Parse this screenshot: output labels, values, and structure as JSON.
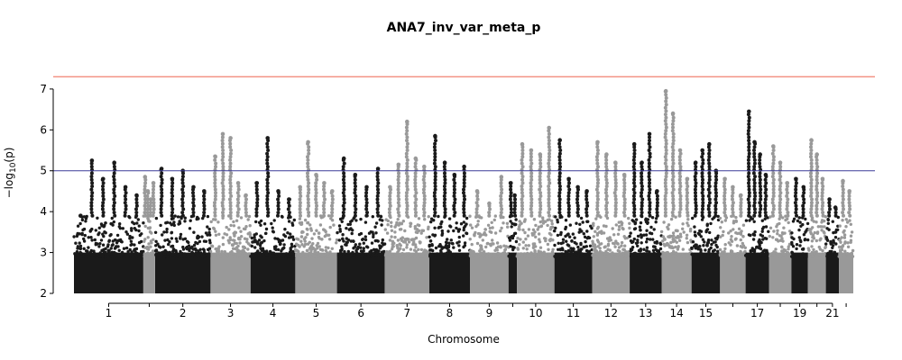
{
  "chart_data": {
    "type": "scatter",
    "title": "ANA7_inv_var_meta_p",
    "xlabel": "Chromosome",
    "ylabel_main": "−log",
    "ylabel_sub": "10",
    "ylabel_tail": "(p)",
    "ylim": [
      2,
      7.35
    ],
    "yticks": [
      "2",
      "3",
      "4",
      "5",
      "6",
      "7"
    ],
    "suggestive_line": 5,
    "genomewide_line": 7.3,
    "line_colors": {
      "suggestive": "#3b3b98",
      "genomewide": "#f08070"
    },
    "series_colors": [
      "#1a1a1a",
      "#999999"
    ],
    "grid": false,
    "chromosomes": [
      {
        "label": "1",
        "start": 0,
        "end": 248,
        "peaks": [
          3.9,
          5.25,
          4.8,
          5.2,
          4.6,
          4.4
        ]
      },
      {
        "label": "",
        "start": 248,
        "end": 290,
        "peaks": [
          4.85,
          4.5,
          4.3,
          4.7
        ]
      },
      {
        "label": "2",
        "start": 290,
        "end": 488,
        "peaks": [
          5.05,
          4.8,
          5.0,
          4.6,
          4.5
        ]
      },
      {
        "label": "3",
        "start": 488,
        "end": 631,
        "peaks": [
          5.35,
          5.9,
          5.8,
          4.7,
          4.4
        ]
      },
      {
        "label": "4",
        "start": 631,
        "end": 791,
        "peaks": [
          4.7,
          5.8,
          4.5,
          4.3
        ]
      },
      {
        "label": "5",
        "start": 791,
        "end": 940,
        "peaks": [
          4.6,
          5.7,
          4.9,
          4.7,
          4.5
        ]
      },
      {
        "label": "6",
        "start": 940,
        "end": 1111,
        "peaks": [
          5.3,
          4.9,
          4.6,
          5.05
        ]
      },
      {
        "label": "7",
        "start": 1111,
        "end": 1270,
        "peaks": [
          4.6,
          5.15,
          6.2,
          5.3,
          5.1
        ]
      },
      {
        "label": "8",
        "start": 1270,
        "end": 1415,
        "peaks": [
          5.85,
          5.2,
          4.9,
          5.1
        ]
      },
      {
        "label": "9",
        "start": 1415,
        "end": 1553,
        "peaks": [
          4.5,
          4.2,
          4.85
        ]
      },
      {
        "label": "",
        "start": 1553,
        "end": 1583,
        "peaks": [
          4.7,
          4.4
        ]
      },
      {
        "label": "10",
        "start": 1583,
        "end": 1717,
        "peaks": [
          5.65,
          5.5,
          5.4,
          6.05
        ]
      },
      {
        "label": "11",
        "start": 1717,
        "end": 1852,
        "peaks": [
          5.75,
          4.8,
          4.6,
          4.5
        ]
      },
      {
        "label": "12",
        "start": 1852,
        "end": 1986,
        "peaks": [
          5.7,
          5.4,
          5.2,
          4.9
        ]
      },
      {
        "label": "13",
        "start": 1986,
        "end": 2100,
        "peaks": [
          5.65,
          5.2,
          5.9,
          4.5
        ]
      },
      {
        "label": "14",
        "start": 2100,
        "end": 2207,
        "peaks": [
          6.95,
          6.4,
          5.5,
          4.8
        ]
      },
      {
        "label": "15",
        "start": 2207,
        "end": 2309,
        "peaks": [
          5.2,
          5.5,
          5.65,
          5.0
        ]
      },
      {
        "label": "",
        "start": 2309,
        "end": 2400,
        "peaks": [
          4.8,
          4.6,
          4.4
        ]
      },
      {
        "label": "17",
        "start": 2400,
        "end": 2484,
        "peaks": [
          6.45,
          5.7,
          5.4,
          4.9
        ]
      },
      {
        "label": "",
        "start": 2484,
        "end": 2564,
        "peaks": [
          5.6,
          5.2,
          4.7
        ]
      },
      {
        "label": "19",
        "start": 2564,
        "end": 2623,
        "peaks": [
          4.8,
          4.6
        ]
      },
      {
        "label": "",
        "start": 2623,
        "end": 2687,
        "peaks": [
          5.75,
          5.4,
          4.8
        ]
      },
      {
        "label": "21",
        "start": 2687,
        "end": 2734,
        "peaks": [
          4.3,
          4.1
        ]
      },
      {
        "label": "",
        "start": 2734,
        "end": 2785,
        "peaks": [
          4.75,
          4.5
        ]
      }
    ]
  }
}
